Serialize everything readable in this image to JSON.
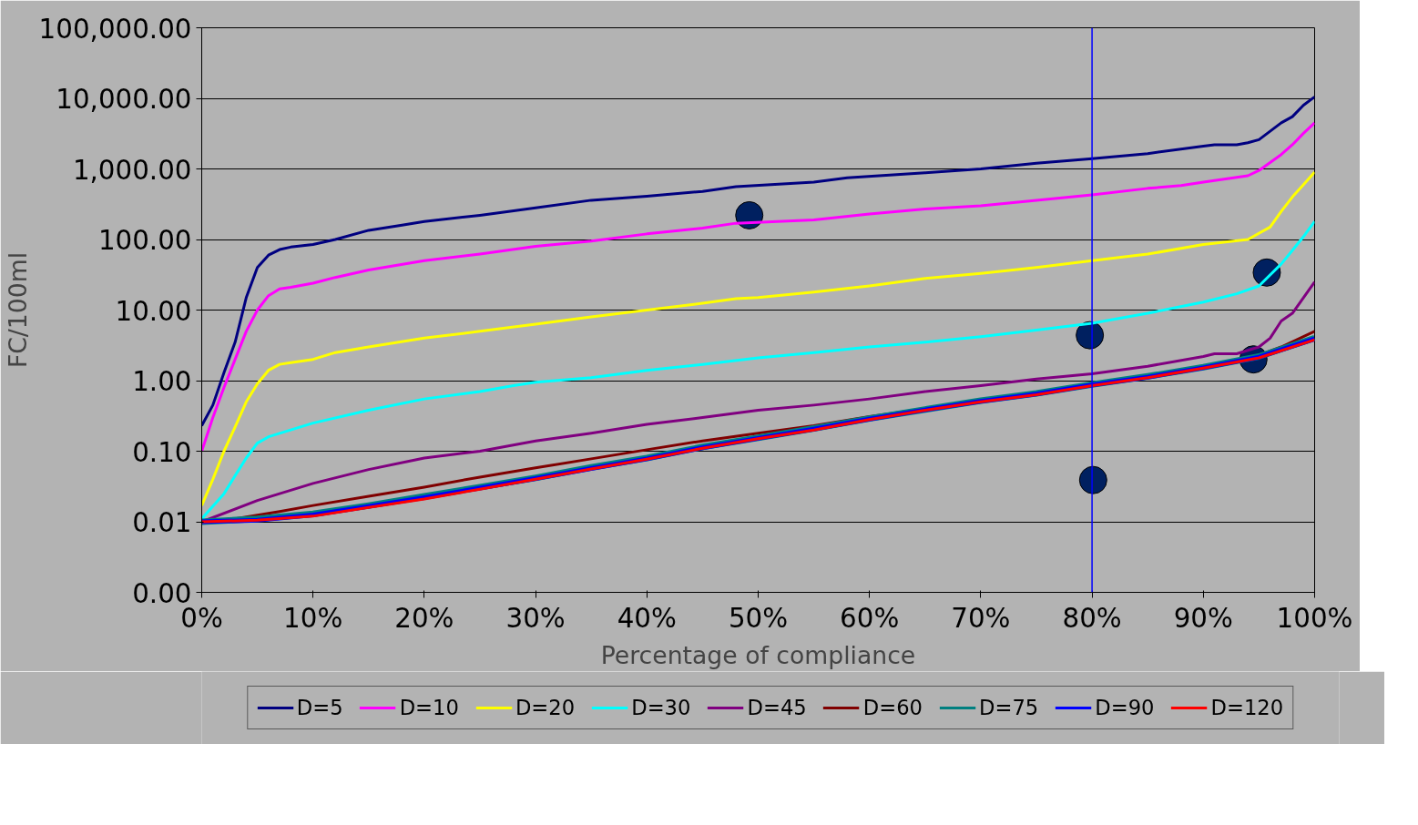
{
  "chart_data": {
    "type": "line",
    "xlabel": "Percentage of compliance",
    "ylabel": "FC/100ml",
    "log": "y",
    "grid": "y",
    "legend": "bottom",
    "line_style": "solid",
    "xlim": [
      0,
      100
    ],
    "ylim": [
      0.001,
      100000
    ],
    "xticks": [
      {
        "value": 0,
        "label": "0%"
      },
      {
        "value": 10,
        "label": "10%"
      },
      {
        "value": 20,
        "label": "20%"
      },
      {
        "value": 30,
        "label": "30%"
      },
      {
        "value": 40,
        "label": "40%"
      },
      {
        "value": 50,
        "label": "50%"
      },
      {
        "value": 60,
        "label": "60%"
      },
      {
        "value": 70,
        "label": "70%"
      },
      {
        "value": 80,
        "label": "80%"
      },
      {
        "value": 90,
        "label": "90%"
      },
      {
        "value": 100,
        "label": "100%"
      }
    ],
    "yticks": [
      {
        "value": 0.001,
        "label": "0.00"
      },
      {
        "value": 0.01,
        "label": "0.01"
      },
      {
        "value": 0.1,
        "label": "0.10"
      },
      {
        "value": 1,
        "label": "1.00"
      },
      {
        "value": 10,
        "label": "10.00"
      },
      {
        "value": 100,
        "label": "100.00"
      },
      {
        "value": 1000,
        "label": "1,000.00"
      },
      {
        "value": 10000,
        "label": "10,000.00"
      },
      {
        "value": 100000,
        "label": "100,000.00"
      }
    ],
    "ref_lines": [
      {
        "axis": "x",
        "value": 80,
        "color": "#0000ff"
      }
    ],
    "series": [
      {
        "name": "D=5",
        "color": "#000080",
        "x": [
          0,
          1,
          2,
          3,
          4,
          5,
          6,
          7,
          8,
          10,
          12,
          15,
          18,
          20,
          25,
          30,
          35,
          40,
          45,
          48,
          55,
          58,
          65,
          70,
          75,
          80,
          85,
          90,
          91,
          93,
          94,
          95,
          97,
          98,
          99,
          100
        ],
        "values": [
          0.23,
          0.45,
          1.3,
          3.5,
          15,
          40,
          60,
          72,
          78,
          85,
          100,
          135,
          160,
          180,
          220,
          280,
          360,
          410,
          480,
          560,
          650,
          750,
          880,
          1000,
          1200,
          1400,
          1650,
          2100,
          2200,
          2200,
          2350,
          2600,
          4500,
          5500,
          8000,
          10500
        ]
      },
      {
        "name": "D=10",
        "color": "#ff00ff",
        "x": [
          0,
          1,
          2,
          3,
          4,
          5,
          6,
          7,
          8,
          10,
          12,
          15,
          20,
          25,
          30,
          35,
          40,
          45,
          48,
          55,
          60,
          65,
          70,
          75,
          80,
          85,
          88,
          90,
          93,
          94,
          95,
          97,
          98,
          99,
          100
        ],
        "values": [
          0.1,
          0.3,
          0.8,
          2,
          5,
          10,
          16,
          20,
          21,
          24,
          29,
          37,
          50,
          62,
          80,
          95,
          120,
          145,
          170,
          190,
          230,
          270,
          300,
          360,
          430,
          530,
          580,
          650,
          760,
          800,
          950,
          1600,
          2200,
          3200,
          4500
        ]
      },
      {
        "name": "D=20",
        "color": "#ffff00",
        "x": [
          0,
          1,
          2,
          3,
          4,
          5,
          6,
          7,
          8,
          10,
          12,
          15,
          20,
          25,
          30,
          35,
          40,
          45,
          48,
          50,
          55,
          60,
          65,
          70,
          75,
          80,
          85,
          90,
          94,
          96,
          97,
          98,
          99,
          100
        ],
        "values": [
          0.017,
          0.04,
          0.1,
          0.22,
          0.5,
          0.9,
          1.4,
          1.7,
          1.8,
          2,
          2.5,
          3,
          4,
          5,
          6.3,
          8,
          10,
          12.5,
          14.5,
          15,
          18,
          22,
          28,
          33,
          40,
          50,
          62,
          85,
          100,
          150,
          250,
          400,
          600,
          900
        ]
      },
      {
        "name": "D=30",
        "color": "#00ffff",
        "x": [
          0,
          2,
          3,
          4,
          5,
          6,
          8,
          10,
          15,
          20,
          25,
          28,
          30,
          35,
          40,
          45,
          50,
          55,
          60,
          65,
          70,
          75,
          80,
          85,
          90,
          93,
          95,
          97,
          98,
          99,
          100
        ],
        "values": [
          0.011,
          0.025,
          0.045,
          0.08,
          0.13,
          0.16,
          0.2,
          0.25,
          0.38,
          0.55,
          0.7,
          0.85,
          0.95,
          1.1,
          1.4,
          1.7,
          2.1,
          2.5,
          3,
          3.5,
          4.2,
          5.2,
          6.5,
          9,
          13,
          17,
          22,
          45,
          70,
          110,
          180
        ]
      },
      {
        "name": "D=45",
        "color": "#800080",
        "x": [
          0,
          5,
          10,
          15,
          20,
          25,
          30,
          35,
          40,
          45,
          50,
          55,
          60,
          65,
          70,
          75,
          80,
          85,
          90,
          91,
          93,
          95,
          96,
          97,
          98,
          99,
          100
        ],
        "values": [
          0.01,
          0.02,
          0.035,
          0.055,
          0.08,
          0.1,
          0.14,
          0.18,
          0.24,
          0.3,
          0.38,
          0.45,
          0.55,
          0.7,
          0.85,
          1.05,
          1.25,
          1.6,
          2.2,
          2.4,
          2.4,
          3,
          4,
          7,
          9,
          15,
          25
        ]
      },
      {
        "name": "D=60",
        "color": "#800000",
        "x": [
          0,
          3,
          7,
          10,
          15,
          20,
          25,
          30,
          35,
          40,
          45,
          50,
          55,
          60,
          65,
          70,
          75,
          80,
          85,
          90,
          95,
          97,
          100
        ],
        "values": [
          0.01,
          0.011,
          0.014,
          0.017,
          0.023,
          0.031,
          0.043,
          0.058,
          0.078,
          0.105,
          0.14,
          0.18,
          0.23,
          0.31,
          0.4,
          0.52,
          0.68,
          0.9,
          1.15,
          1.6,
          2.3,
          3,
          5
        ]
      },
      {
        "name": "D=75",
        "color": "#008080",
        "x": [
          0,
          5,
          10,
          15,
          20,
          25,
          30,
          35,
          40,
          45,
          50,
          55,
          60,
          65,
          70,
          75,
          80,
          85,
          90,
          95,
          100
        ],
        "values": [
          0.01,
          0.011,
          0.013,
          0.017,
          0.023,
          0.031,
          0.042,
          0.059,
          0.08,
          0.115,
          0.155,
          0.21,
          0.29,
          0.39,
          0.52,
          0.66,
          0.88,
          1.15,
          1.55,
          2.2,
          4
        ]
      },
      {
        "name": "D=90",
        "color": "#0000ff",
        "x": [
          0,
          5,
          10,
          15,
          20,
          25,
          30,
          35,
          40,
          45,
          50,
          55,
          60,
          65,
          70,
          75,
          80,
          85,
          90,
          95,
          100
        ],
        "values": [
          0.01,
          0.0105,
          0.0125,
          0.0165,
          0.022,
          0.03,
          0.041,
          0.057,
          0.078,
          0.112,
          0.152,
          0.205,
          0.285,
          0.385,
          0.51,
          0.645,
          0.87,
          1.12,
          1.52,
          2.15,
          3.9
        ]
      },
      {
        "name": "D=120",
        "color": "#ff0000",
        "x": [
          0,
          5,
          10,
          15,
          20,
          25,
          30,
          35,
          40,
          45,
          50,
          55,
          60,
          65,
          70,
          75,
          80,
          85,
          90,
          95,
          100
        ],
        "values": [
          0.01,
          0.0105,
          0.012,
          0.016,
          0.021,
          0.029,
          0.04,
          0.056,
          0.077,
          0.11,
          0.15,
          0.2,
          0.28,
          0.38,
          0.5,
          0.63,
          0.85,
          1.1,
          1.5,
          2.1,
          3.8
        ]
      },
      {
        "type": "scatter",
        "marker": "circle",
        "color": "#002060",
        "x": [
          49.2,
          79.8,
          80.1,
          94.5,
          95.7
        ],
        "values": [
          220,
          4.4,
          0.039,
          2,
          34
        ]
      }
    ]
  }
}
